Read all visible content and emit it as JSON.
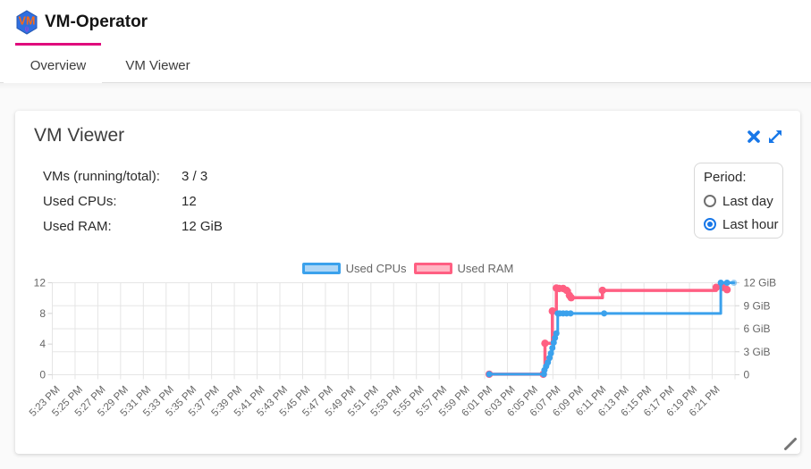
{
  "app": {
    "title": "VM-Operator",
    "logo_text": "VM"
  },
  "tabs": [
    {
      "label": "Overview",
      "active": true
    },
    {
      "label": "VM Viewer",
      "active": false
    }
  ],
  "panel": {
    "title": "VM Viewer",
    "actions": [
      {
        "icon": "close"
      },
      {
        "icon": "expand"
      }
    ],
    "stats": [
      {
        "label": "VMs (running/total):",
        "value": "3 / 3"
      },
      {
        "label": "Used CPUs:",
        "value": "12"
      },
      {
        "label": "Used RAM:",
        "value": "12 GiB"
      }
    ],
    "period": {
      "label": "Period:",
      "options": [
        {
          "label": "Last day",
          "selected": false
        },
        {
          "label": "Last hour",
          "selected": true
        }
      ]
    }
  },
  "chart_data": {
    "type": "line",
    "stepped": true,
    "legend_position": "top",
    "grid": true,
    "x_axis": {
      "unit": "minutes after 5:23 PM",
      "range_minutes": [
        0,
        60
      ],
      "tick_labels": [
        "5:23 PM",
        "5:25 PM",
        "5:27 PM",
        "5:29 PM",
        "5:31 PM",
        "5:33 PM",
        "5:35 PM",
        "5:37 PM",
        "5:39 PM",
        "5:41 PM",
        "5:43 PM",
        "5:45 PM",
        "5:47 PM",
        "5:49 PM",
        "5:51 PM",
        "5:53 PM",
        "5:55 PM",
        "5:57 PM",
        "5:59 PM",
        "6:01 PM",
        "6:03 PM",
        "6:05 PM",
        "6:07 PM",
        "6:09 PM",
        "6:11 PM",
        "6:13 PM",
        "6:15 PM",
        "6:17 PM",
        "6:19 PM",
        "6:21 PM"
      ]
    },
    "y_left": {
      "ticks": [
        0,
        4,
        8,
        12
      ],
      "range": [
        0,
        12
      ]
    },
    "y_right": {
      "tick_labels": [
        "0",
        "3 GiB",
        "6 GiB",
        "9 GiB",
        "12 GiB"
      ],
      "tick_values_gib": [
        0,
        3,
        6,
        9,
        12
      ],
      "range": [
        0,
        12
      ]
    },
    "series": [
      {
        "name": "Used CPUs",
        "axis": "left",
        "color": "#3ba1ec",
        "legend_fill": "#aed6f6",
        "points": [
          [
            38.4,
            0.07
          ],
          [
            43.2,
            0.07
          ],
          [
            43.25,
            0.6
          ],
          [
            43.4,
            1.1
          ],
          [
            43.55,
            1.6
          ],
          [
            43.7,
            2.2
          ],
          [
            43.82,
            2.8
          ],
          [
            43.95,
            3.5
          ],
          [
            44.07,
            4.2
          ],
          [
            44.18,
            4.8
          ],
          [
            44.3,
            5.4
          ],
          [
            44.42,
            8
          ],
          [
            44.6,
            8
          ],
          [
            44.9,
            8
          ],
          [
            45.2,
            8
          ],
          [
            45.55,
            8
          ],
          [
            48.5,
            8
          ],
          [
            58.75,
            12
          ],
          [
            59.3,
            12
          ],
          [
            59.9,
            12
          ]
        ]
      },
      {
        "name": "Used RAM",
        "axis": "right",
        "color": "#ff5f82",
        "legend_fill": "#ffb6c4",
        "points": [
          [
            38.4,
            0.07
          ],
          [
            43.15,
            0.07
          ],
          [
            43.3,
            4.1
          ],
          [
            43.95,
            8.3
          ],
          [
            44.3,
            11.3
          ],
          [
            44.55,
            11.25
          ],
          [
            44.9,
            11.25
          ],
          [
            45.2,
            11.0
          ],
          [
            45.45,
            10.35
          ],
          [
            45.6,
            10.05
          ],
          [
            48.35,
            11.0
          ],
          [
            58.35,
            11.4
          ],
          [
            58.9,
            11.4
          ],
          [
            59.3,
            11.1
          ]
        ]
      }
    ]
  }
}
